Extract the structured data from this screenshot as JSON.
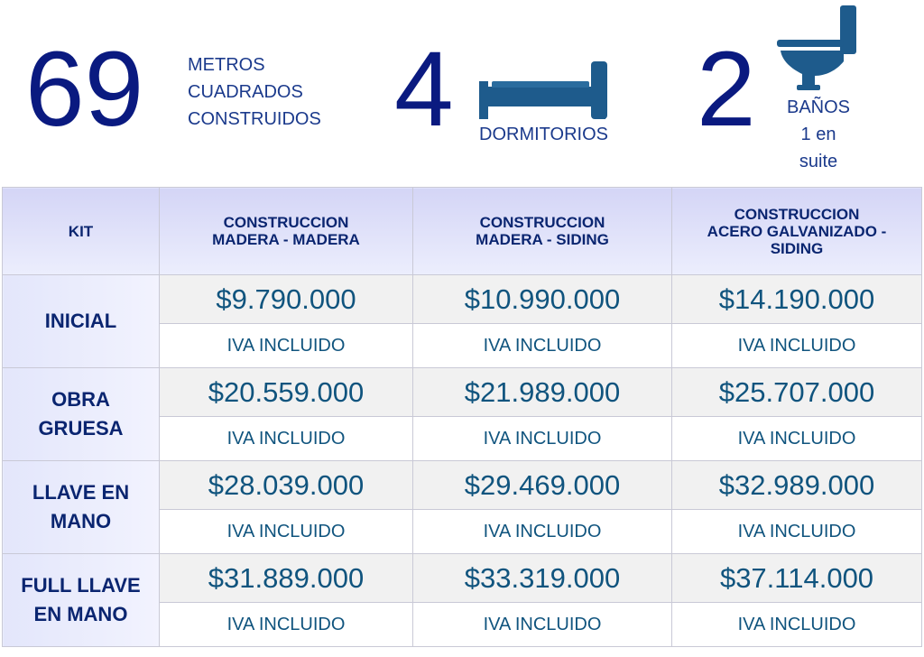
{
  "summary": {
    "area": {
      "number": "69",
      "lines": [
        "METROS",
        "CUADRADOS",
        "CONSTRUIDOS"
      ],
      "icon": ""
    },
    "bedrooms": {
      "number": "4",
      "label": "DORMITORIOS",
      "icon": "bed-icon"
    },
    "bathrooms": {
      "number": "2",
      "lines": [
        "BAÑOS",
        "1 en",
        "suite"
      ],
      "icon": "toilet-icon"
    }
  },
  "table": {
    "headers": {
      "kit": "KIT",
      "col1": [
        "CONSTRUCCION",
        "MADERA - MADERA"
      ],
      "col2": [
        "CONSTRUCCION",
        "MADERA - SIDING"
      ],
      "col3": [
        "CONSTRUCCION",
        "ACERO GALVANIZADO -",
        "SIDING"
      ]
    },
    "rows": [
      {
        "kit": [
          "INICIAL"
        ],
        "prices": [
          "$9.790.000",
          "$10.990.000",
          "$14.190.000"
        ],
        "note": "IVA INCLUIDO"
      },
      {
        "kit": [
          "OBRA",
          "GRUESA"
        ],
        "prices": [
          "$20.559.000",
          "$21.989.000",
          "$25.707.000"
        ],
        "note": "IVA INCLUIDO"
      },
      {
        "kit": [
          "LLAVE EN",
          "MANO"
        ],
        "prices": [
          "$28.039.000",
          "$29.469.000",
          "$32.989.000"
        ],
        "note": "IVA INCLUIDO"
      },
      {
        "kit": [
          "FULL LLAVE",
          "EN MANO"
        ],
        "prices": [
          "$31.889.000",
          "$33.319.000",
          "$37.114.000"
        ],
        "note": "IVA INCLUIDO"
      }
    ]
  },
  "colors": {
    "accent": "#0a1a80",
    "text": "#10547e",
    "header_bg": "#d4d5f6",
    "icon": "#1e5b8c"
  }
}
